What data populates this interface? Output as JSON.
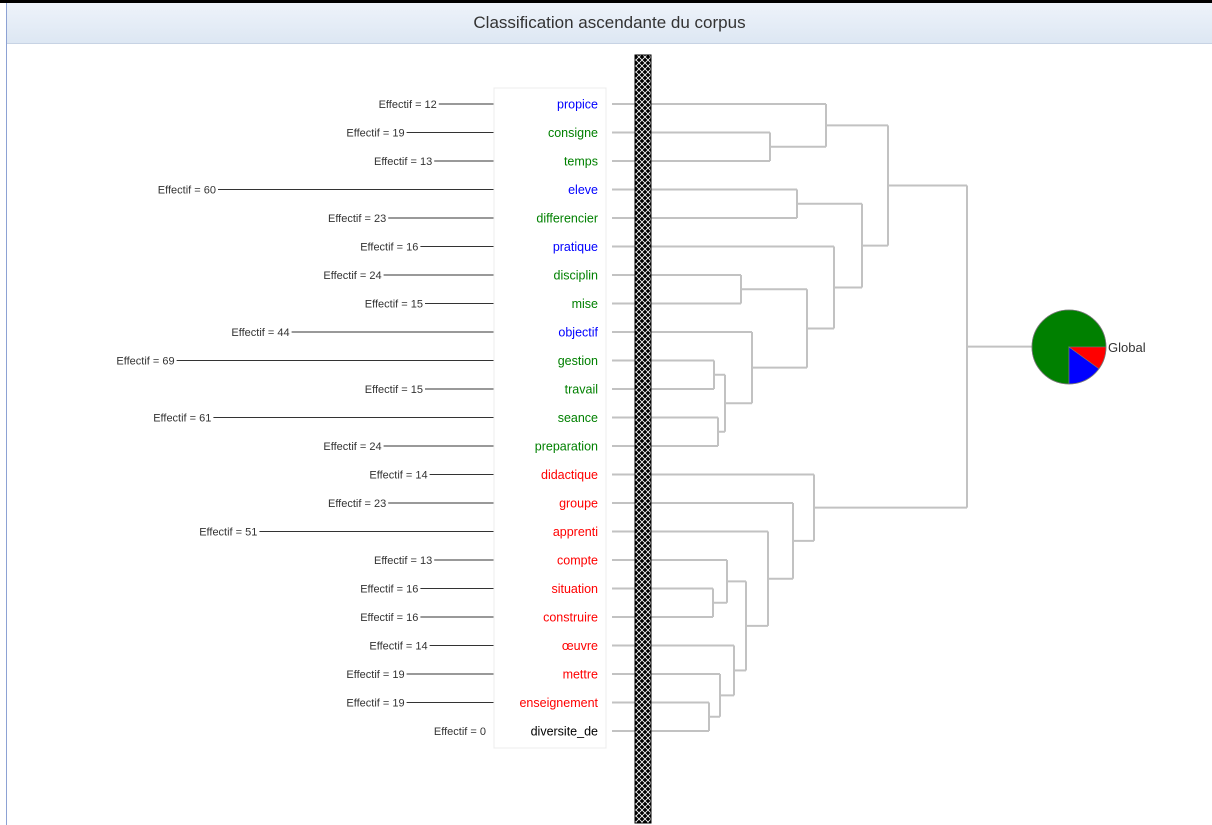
{
  "title": "Classification ascendante du corpus",
  "colors": {
    "blue": "#0000ff",
    "green": "#008000",
    "red": "#ff0000",
    "black": "#000000",
    "tree": "#c2c2c2"
  },
  "terms": [
    {
      "label": "propice",
      "effectif_text": "Effectif = 12",
      "effectif": 12,
      "color": "blue"
    },
    {
      "label": "consigne",
      "effectif_text": "Effectif = 19",
      "effectif": 19,
      "color": "green"
    },
    {
      "label": "temps",
      "effectif_text": "Effectif = 13",
      "effectif": 13,
      "color": "green"
    },
    {
      "label": "eleve",
      "effectif_text": "Effectif = 60",
      "effectif": 60,
      "color": "blue"
    },
    {
      "label": "differencier",
      "effectif_text": "Effectif = 23",
      "effectif": 23,
      "color": "green"
    },
    {
      "label": "pratique",
      "effectif_text": "Effectif = 16",
      "effectif": 16,
      "color": "blue"
    },
    {
      "label": "disciplin",
      "effectif_text": "Effectif = 24",
      "effectif": 24,
      "color": "green"
    },
    {
      "label": "mise",
      "effectif_text": "Effectif = 15",
      "effectif": 15,
      "color": "green"
    },
    {
      "label": "objectif",
      "effectif_text": "Effectif = 44",
      "effectif": 44,
      "color": "blue"
    },
    {
      "label": "gestion",
      "effectif_text": "Effectif = 69",
      "effectif": 69,
      "color": "green"
    },
    {
      "label": "travail",
      "effectif_text": "Effectif = 15",
      "effectif": 15,
      "color": "green"
    },
    {
      "label": "seance",
      "effectif_text": "Effectif = 61",
      "effectif": 61,
      "color": "green"
    },
    {
      "label": "preparation",
      "effectif_text": "Effectif = 24",
      "effectif": 24,
      "color": "green"
    },
    {
      "label": "didactique",
      "effectif_text": "Effectif = 14",
      "effectif": 14,
      "color": "red"
    },
    {
      "label": "groupe",
      "effectif_text": "Effectif = 23",
      "effectif": 23,
      "color": "red"
    },
    {
      "label": "apprenti",
      "effectif_text": "Effectif = 51",
      "effectif": 51,
      "color": "red"
    },
    {
      "label": "compte",
      "effectif_text": "Effectif = 13",
      "effectif": 13,
      "color": "red"
    },
    {
      "label": "situation",
      "effectif_text": "Effectif = 16",
      "effectif": 16,
      "color": "red"
    },
    {
      "label": "construire",
      "effectif_text": "Effectif = 16",
      "effectif": 16,
      "color": "red"
    },
    {
      "label": "œuvre",
      "effectif_text": "Effectif = 14",
      "effectif": 14,
      "color": "red"
    },
    {
      "label": "mettre",
      "effectif_text": "Effectif = 19",
      "effectif": 19,
      "color": "red"
    },
    {
      "label": "enseignement",
      "effectif_text": "Effectif = 19",
      "effectif": 19,
      "color": "red"
    },
    {
      "label": "diversite_de",
      "effectif_text": "Effectif = 0",
      "effectif": 0,
      "color": "black"
    }
  ],
  "root": {
    "label": "Global",
    "pie_slices": [
      {
        "color": "green",
        "fraction": 0.75
      },
      {
        "color": "blue",
        "fraction": 0.15
      },
      {
        "color": "red",
        "fraction": 0.1
      }
    ]
  }
}
